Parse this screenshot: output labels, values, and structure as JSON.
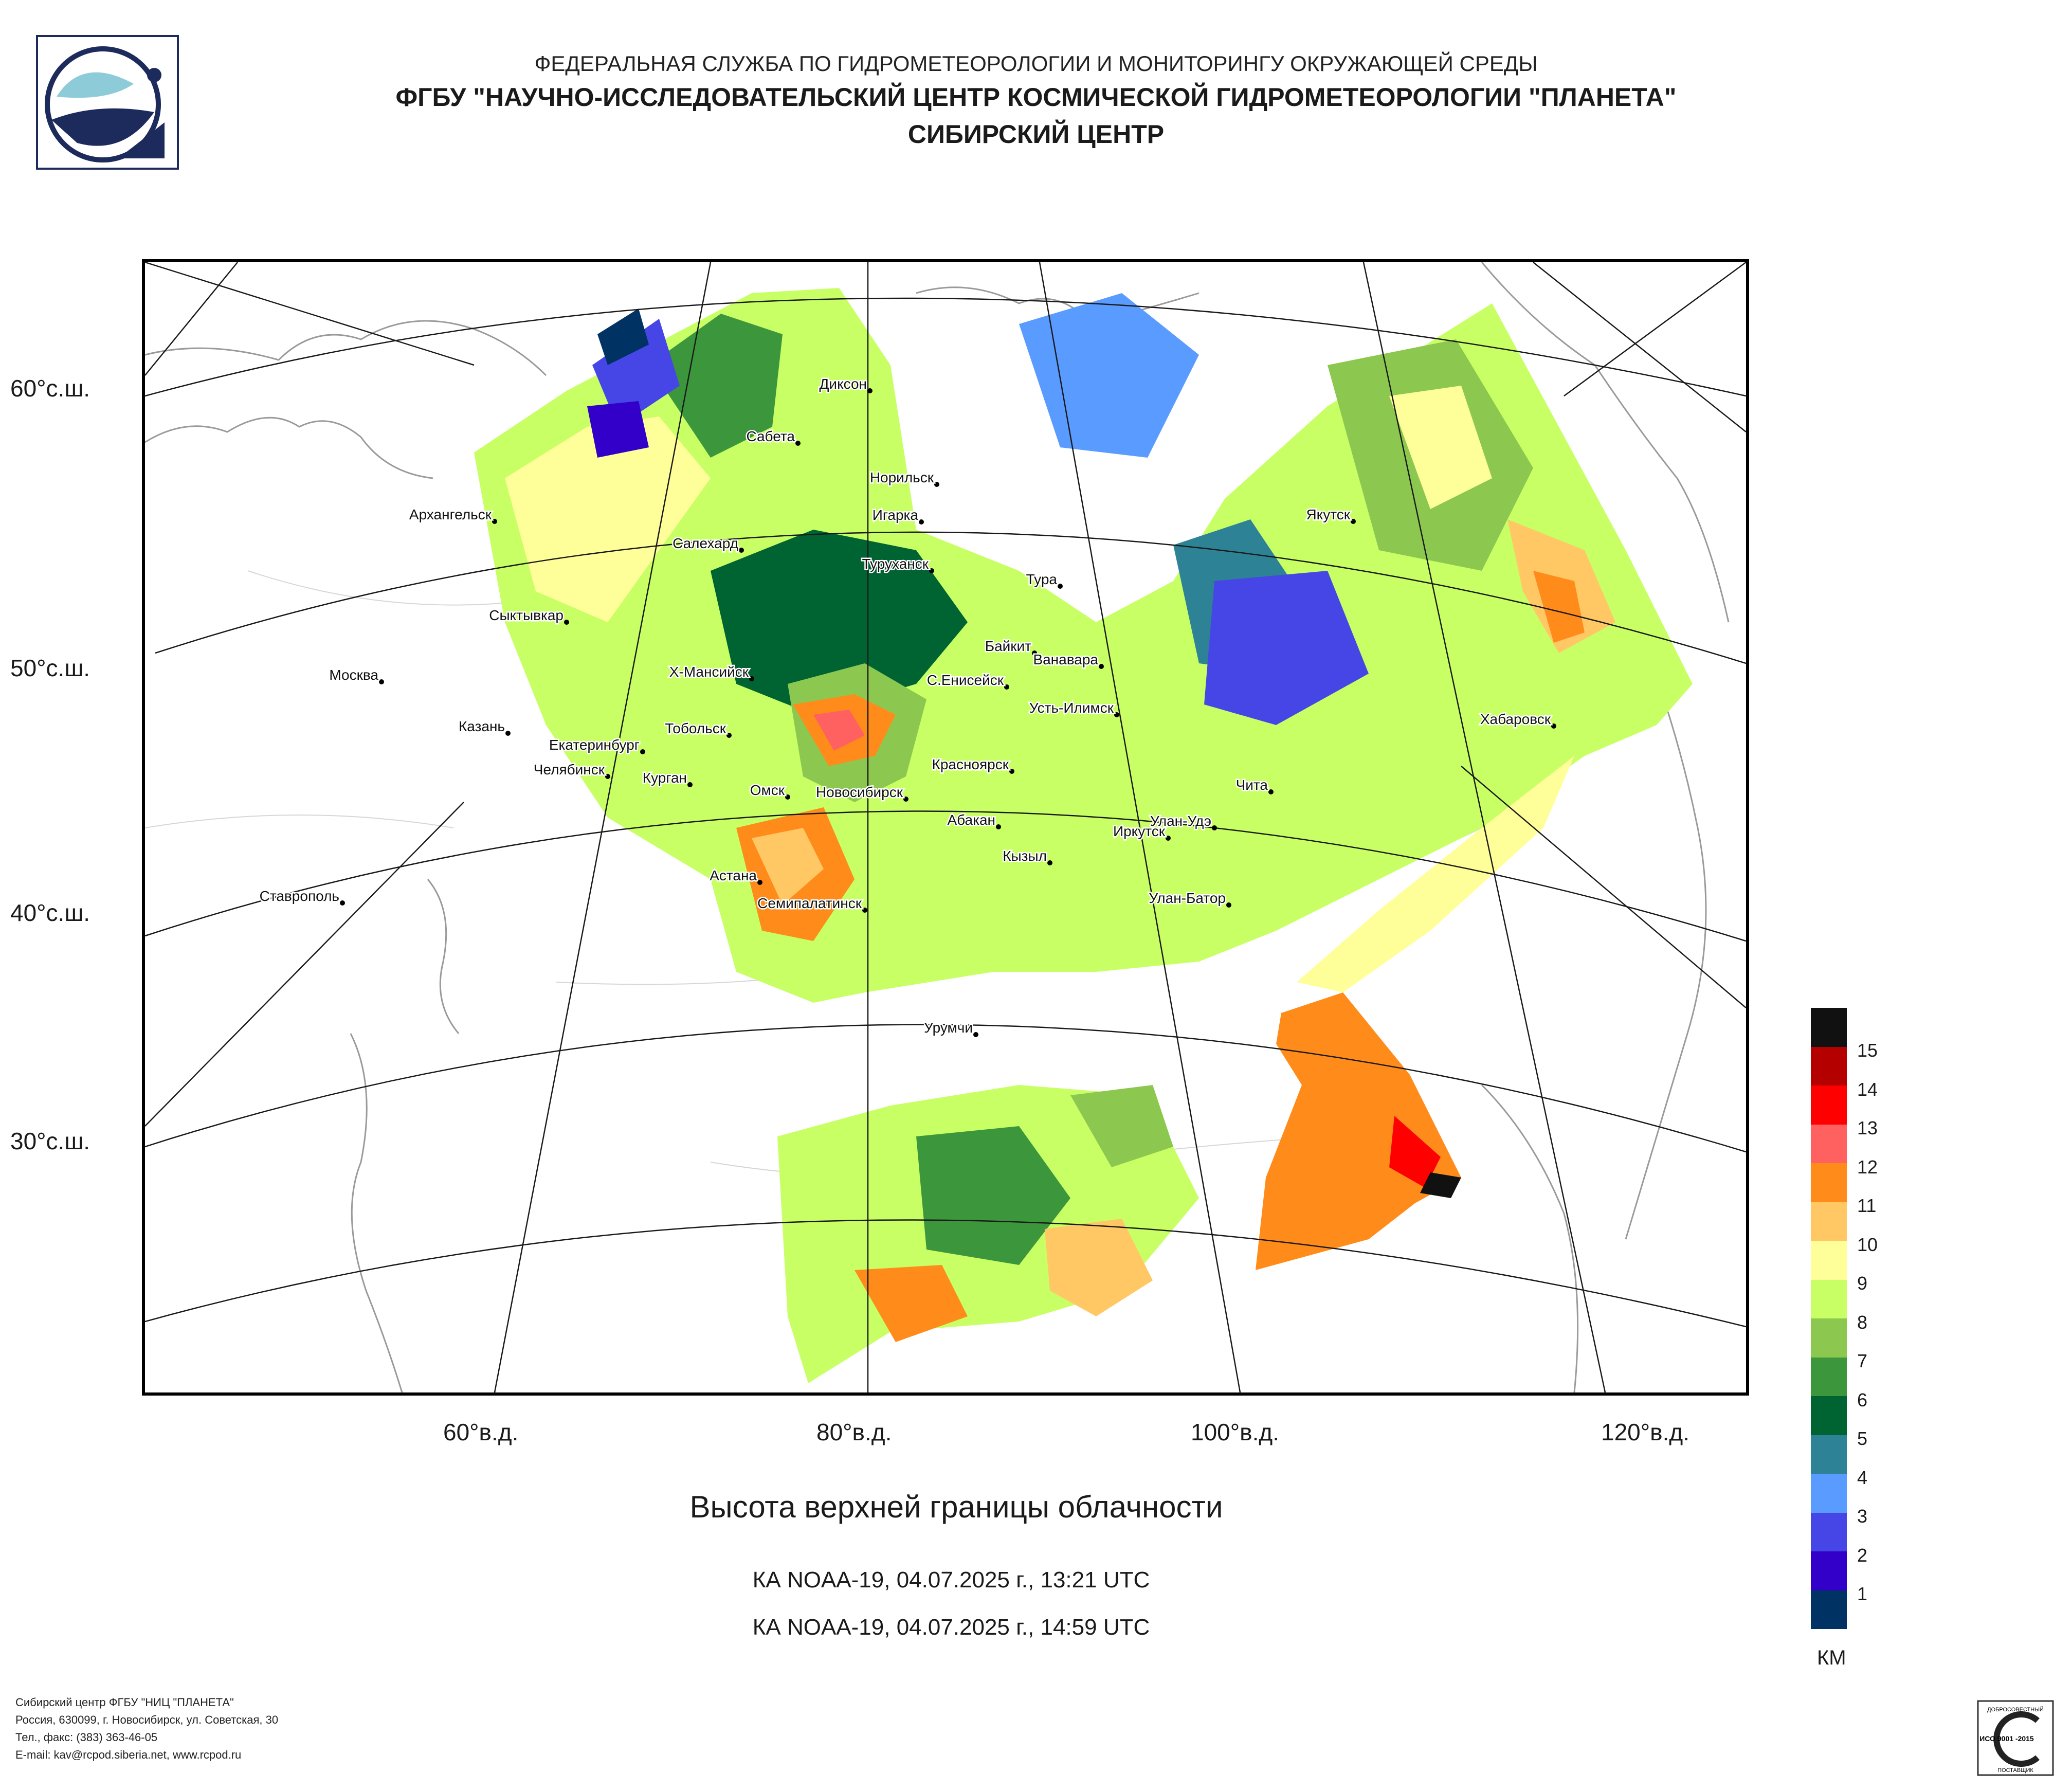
{
  "header": {
    "agency": "ФЕДЕРАЛЬНАЯ СЛУЖБА ПО ГИДРОМЕТЕОРОЛОГИИ И МОНИТОРИНГУ ОКРУЖАЮЩЕЙ СРЕДЫ",
    "center": "ФГБУ \"НАУЧНО-ИССЛЕДОВАТЕЛЬСКИЙ ЦЕНТР КОСМИЧЕСКОЙ ГИДРОМЕТЕОРОЛОГИИ \"ПЛАНЕТА\"",
    "branch": "СИБИРСКИЙ ЦЕНТР"
  },
  "map": {
    "lat_labels": [
      "60°с.ш.",
      "50°с.ш.",
      "40°с.ш.",
      "30°с.ш."
    ],
    "lon_labels": [
      "60°в.д.",
      "80°в.д.",
      "100°в.д.",
      "120°в.д."
    ],
    "cities": [
      {
        "name": "Диксон"
      },
      {
        "name": "Сабета"
      },
      {
        "name": "Норильск"
      },
      {
        "name": "Игарка"
      },
      {
        "name": "Архангельск"
      },
      {
        "name": "Салехард"
      },
      {
        "name": "Туруханск"
      },
      {
        "name": "Тура"
      },
      {
        "name": "Якутск"
      },
      {
        "name": "Сыктывкар"
      },
      {
        "name": "Байкит"
      },
      {
        "name": "Ванавара"
      },
      {
        "name": "Х-Мансийск"
      },
      {
        "name": "С.Енисейск"
      },
      {
        "name": "Москва"
      },
      {
        "name": "Усть-Илимск"
      },
      {
        "name": "Хабаровск"
      },
      {
        "name": "Казань"
      },
      {
        "name": "Тобольск"
      },
      {
        "name": "Екатеринбург"
      },
      {
        "name": "Красноярск"
      },
      {
        "name": "Челябинск"
      },
      {
        "name": "Чита"
      },
      {
        "name": "Курган"
      },
      {
        "name": "Омск"
      },
      {
        "name": "Новосибирск"
      },
      {
        "name": "Абакан"
      },
      {
        "name": "Улан-Удэ"
      },
      {
        "name": "Иркутск"
      },
      {
        "name": "Кызыл"
      },
      {
        "name": "Астана"
      },
      {
        "name": "Ставрополь"
      },
      {
        "name": "Улан-Батор"
      },
      {
        "name": "Семипалатинск"
      },
      {
        "name": "Урумчи"
      }
    ]
  },
  "product": {
    "title": "Высота верхней границы облачности",
    "pass_1": "КА NOAA-19, 04.07.2025 г., 13:21 UTC",
    "pass_2": "КА NOAA-19, 04.07.2025 г., 14:59 UTC"
  },
  "legend": {
    "unit": "КМ",
    "levels": [
      {
        "label": "15",
        "color": "#111111"
      },
      {
        "label": "14",
        "color": "#b50000"
      },
      {
        "label": "13",
        "color": "#ff0000"
      },
      {
        "label": "12",
        "color": "#ff6060"
      },
      {
        "label": "11",
        "color": "#ff8c1a"
      },
      {
        "label": "10",
        "color": "#ffc864"
      },
      {
        "label": "9",
        "color": "#ffff99"
      },
      {
        "label": "8",
        "color": "#c8ff64"
      },
      {
        "label": "7",
        "color": "#8cc850"
      },
      {
        "label": "6",
        "color": "#3c963c"
      },
      {
        "label": "5",
        "color": "#006432"
      },
      {
        "label": "4",
        "color": "#2d8296"
      },
      {
        "label": "3",
        "color": "#5a9bff"
      },
      {
        "label": "2",
        "color": "#4646e6"
      },
      {
        "label": "1",
        "color": "#3200c8"
      },
      {
        "label": "",
        "color": "#003264"
      }
    ]
  },
  "footer": {
    "org": "Сибирский центр ФГБУ \"НИЦ \"ПЛАНЕТА\"",
    "address": "Россия, 630099, г. Новосибирск, ул. Советская, 30",
    "phone": "Тел., факс: (383) 363-46-05",
    "email": "E-mail: kav@rcpod.siberia.net, www.rcpod.ru"
  },
  "certificate": {
    "top": "ДОБРОСОВЕСТНЫЙ",
    "code": "ИСО 9001 -2015",
    "bottom": "ПОСТАВЩИК"
  }
}
